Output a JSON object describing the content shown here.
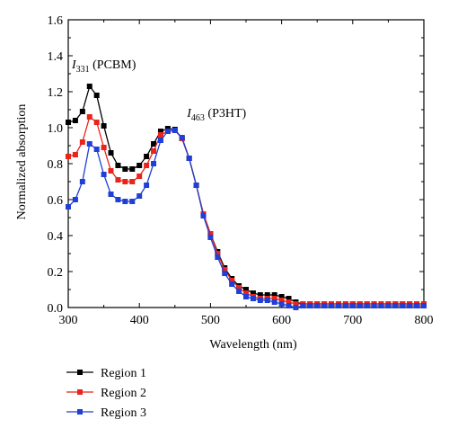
{
  "chart_data": {
    "type": "line",
    "xlabel": "Wavelength (nm)",
    "ylabel": "Normalized absorption",
    "xlim": [
      300,
      800
    ],
    "ylim": [
      0.0,
      1.6
    ],
    "xticks": [
      300,
      400,
      500,
      600,
      700,
      800
    ],
    "yticks": [
      0.0,
      0.2,
      0.4,
      0.6,
      0.8,
      1.0,
      1.2,
      1.4,
      1.6
    ],
    "xtick_labels": [
      "300",
      "400",
      "500",
      "600",
      "700",
      "800"
    ],
    "ytick_labels": [
      "0.0",
      "0.2",
      "0.4",
      "0.6",
      "0.8",
      "1.0",
      "1.2",
      "1.4",
      "1.6"
    ],
    "grid": false,
    "legend_position": "bottom-left, below plot",
    "annotations": [
      {
        "main": "I",
        "sub": "331",
        "rest": " (PCBM)",
        "x": 305,
        "y": 1.33
      },
      {
        "main": "I",
        "sub": "463",
        "rest": " (P3HT)",
        "x": 467,
        "y": 1.06
      }
    ],
    "x": [
      300,
      310,
      320,
      330,
      340,
      350,
      360,
      370,
      380,
      390,
      400,
      410,
      420,
      430,
      440,
      450,
      460,
      470,
      480,
      490,
      500,
      510,
      520,
      530,
      540,
      550,
      560,
      570,
      580,
      590,
      600,
      610,
      620,
      630,
      640,
      650,
      660,
      670,
      680,
      690,
      700,
      710,
      720,
      730,
      740,
      750,
      760,
      770,
      780,
      790,
      800
    ],
    "series": [
      {
        "name": "Region 1",
        "color": "#000000",
        "values": [
          1.03,
          1.04,
          1.09,
          1.23,
          1.18,
          1.01,
          0.86,
          0.79,
          0.77,
          0.77,
          0.79,
          0.84,
          0.91,
          0.98,
          0.995,
          0.99,
          0.94,
          0.83,
          0.68,
          0.52,
          0.41,
          0.31,
          0.22,
          0.16,
          0.12,
          0.1,
          0.08,
          0.07,
          0.07,
          0.07,
          0.06,
          0.05,
          0.03,
          0.02,
          0.02,
          0.02,
          0.02,
          0.02,
          0.02,
          0.02,
          0.02,
          0.02,
          0.02,
          0.02,
          0.02,
          0.02,
          0.02,
          0.02,
          0.02,
          0.02,
          0.02
        ]
      },
      {
        "name": "Region 2",
        "color": "#e8251a",
        "values": [
          0.84,
          0.85,
          0.92,
          1.06,
          1.03,
          0.89,
          0.76,
          0.71,
          0.7,
          0.7,
          0.73,
          0.79,
          0.87,
          0.96,
          0.98,
          0.985,
          0.94,
          0.83,
          0.68,
          0.52,
          0.41,
          0.3,
          0.21,
          0.15,
          0.11,
          0.08,
          0.06,
          0.05,
          0.05,
          0.05,
          0.04,
          0.03,
          0.02,
          0.02,
          0.02,
          0.02,
          0.02,
          0.02,
          0.02,
          0.02,
          0.02,
          0.02,
          0.02,
          0.02,
          0.02,
          0.02,
          0.02,
          0.02,
          0.02,
          0.02,
          0.02
        ]
      },
      {
        "name": "Region 3",
        "color": "#1f3fd6",
        "values": [
          0.56,
          0.6,
          0.7,
          0.91,
          0.88,
          0.74,
          0.63,
          0.6,
          0.59,
          0.59,
          0.62,
          0.68,
          0.8,
          0.93,
          0.98,
          0.985,
          0.945,
          0.83,
          0.68,
          0.51,
          0.39,
          0.28,
          0.19,
          0.13,
          0.09,
          0.06,
          0.05,
          0.04,
          0.04,
          0.03,
          0.02,
          0.01,
          0.0,
          0.01,
          0.01,
          0.01,
          0.01,
          0.01,
          0.01,
          0.01,
          0.01,
          0.01,
          0.01,
          0.01,
          0.01,
          0.01,
          0.01,
          0.01,
          0.01,
          0.01,
          0.01
        ]
      }
    ]
  }
}
